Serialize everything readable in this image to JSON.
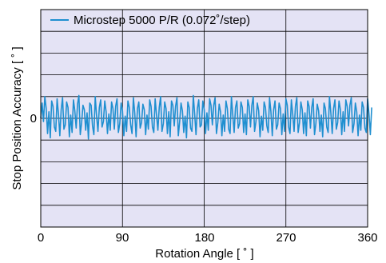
{
  "chart_data": {
    "type": "line",
    "xlabel": "Rotation Angle [ ˚ ]",
    "ylabel": "Stop Position Accuracy [ ˚ ]",
    "xlim": [
      0,
      360
    ],
    "x_ticks": [
      "0",
      "90",
      "180",
      "270",
      "360"
    ],
    "y_ticks": [
      "0"
    ],
    "ylim": [
      -0.1,
      0.1
    ],
    "grid": true,
    "legend_position": "top-left",
    "colors": {
      "plot_background": "#E4E3F5",
      "line": "#1F8FD0",
      "grid": "#000000"
    },
    "series": [
      {
        "name": "Microstep 5000 P/R (0.072˚/step)",
        "x_step": 1.5,
        "values": [
          0.0,
          0.014,
          -0.003,
          0.02,
          0.009,
          -0.014,
          0.006,
          -0.018,
          0.016,
          0.011,
          -0.008,
          -0.012,
          0.018,
          0.004,
          -0.016,
          0.008,
          0.019,
          -0.01,
          -0.006,
          0.015,
          0.01,
          -0.017,
          0.003,
          -0.013,
          0.017,
          0.007,
          -0.009,
          0.013,
          0.021,
          -0.015,
          -0.004,
          0.012,
          0.008,
          -0.011,
          0.005,
          -0.019,
          0.014,
          0.012,
          -0.007,
          -0.015,
          0.02,
          0.002,
          -0.012,
          0.01,
          0.017,
          -0.008,
          -0.003,
          0.016,
          0.006,
          -0.014,
          0.004,
          -0.011,
          0.015,
          0.009,
          -0.01,
          0.011,
          0.018,
          -0.013,
          -0.005,
          0.014,
          0.007,
          -0.016,
          0.002,
          -0.012,
          0.016,
          0.01,
          -0.006,
          -0.014,
          0.019,
          0.005,
          -0.017,
          0.009,
          0.015,
          -0.009,
          -0.004,
          0.013,
          0.008,
          -0.015,
          0.003,
          -0.01,
          0.017,
          0.011,
          -0.008,
          -0.013,
          0.018,
          0.003,
          -0.011,
          0.01,
          0.02,
          -0.012,
          -0.005,
          0.015,
          0.009,
          -0.014,
          0.006,
          -0.017,
          0.016,
          0.012,
          -0.007,
          0.011,
          0.019,
          -0.016,
          -0.003,
          0.014,
          0.007,
          -0.013,
          0.002,
          -0.018,
          0.015,
          0.01,
          -0.009,
          -0.012,
          0.021,
          0.004,
          -0.015,
          0.009,
          0.017,
          -0.008,
          -0.006,
          0.016,
          0.008,
          -0.014,
          0.005,
          -0.011,
          0.018,
          0.012,
          -0.006,
          0.012,
          0.019,
          -0.014,
          -0.004,
          0.013,
          0.006,
          -0.016,
          0.003,
          -0.012,
          0.016,
          0.009,
          -0.01,
          -0.014,
          0.02,
          0.003,
          -0.013,
          0.01,
          0.016,
          -0.009,
          -0.005,
          0.015,
          0.01,
          -0.013,
          0.004,
          -0.015,
          0.017,
          0.011,
          -0.008,
          0.012,
          0.02,
          -0.012,
          -0.003,
          0.014,
          0.007,
          -0.017,
          0.002,
          -0.011,
          0.015,
          0.01,
          -0.007,
          -0.013,
          0.019,
          0.006,
          -0.016,
          0.008,
          0.016,
          -0.01,
          -0.006,
          0.014,
          0.009,
          -0.015,
          0.004,
          -0.012,
          0.018,
          0.012,
          -0.008,
          -0.014,
          0.017,
          0.004,
          -0.012,
          0.011,
          0.019,
          -0.013,
          -0.004,
          0.015,
          0.008,
          -0.014,
          0.005,
          -0.016,
          0.016,
          0.011,
          -0.009,
          0.01,
          0.018,
          -0.015,
          -0.005,
          0.013,
          0.007,
          -0.012,
          0.003,
          -0.017,
          0.014,
          0.009,
          -0.008,
          -0.013,
          0.02,
          0.005,
          -0.014,
          0.009,
          0.017,
          -0.01,
          -0.004,
          0.016,
          0.008,
          -0.015,
          0.006,
          -0.012,
          0.017,
          0.011,
          -0.007,
          0.012,
          0.019,
          -0.013,
          -0.005,
          0.014,
          0.006,
          -0.016,
          0.003,
          -0.011,
          0.015,
          0.01,
          -0.009,
          -0.013,
          0.018,
          0.004,
          -0.015,
          0.01
        ]
      }
    ]
  }
}
